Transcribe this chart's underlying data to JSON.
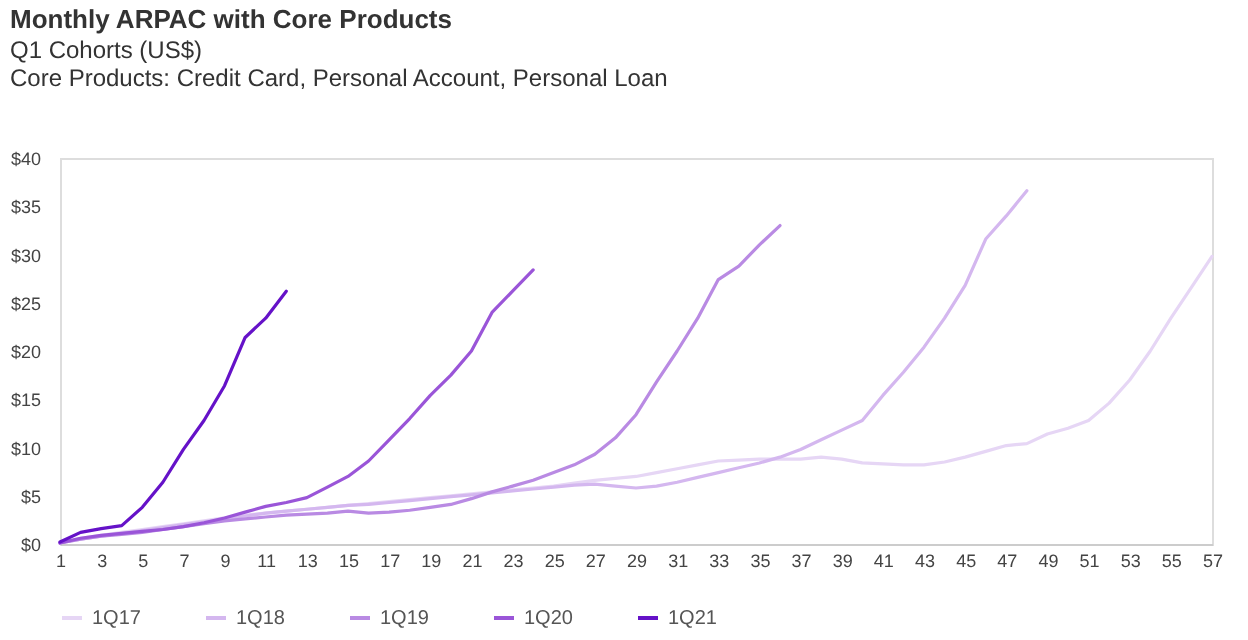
{
  "chart_data": {
    "type": "line",
    "title": "Monthly ARPAC with Core Products",
    "subtitle": "Q1 Cohorts (US$)\nCore Products: Credit Card, Personal Account, Personal Loan",
    "x": [
      1,
      2,
      3,
      4,
      5,
      6,
      7,
      8,
      9,
      10,
      11,
      12,
      13,
      14,
      15,
      16,
      17,
      18,
      19,
      20,
      21,
      22,
      23,
      24,
      25,
      26,
      27,
      28,
      29,
      30,
      31,
      32,
      33,
      34,
      35,
      36,
      37,
      38,
      39,
      40,
      41,
      42,
      43,
      44,
      45,
      46,
      47,
      48,
      49,
      50,
      51,
      52,
      53,
      54,
      55,
      56,
      57
    ],
    "xlim": [
      1,
      57
    ],
    "xticks": [
      1,
      3,
      5,
      7,
      9,
      11,
      13,
      15,
      17,
      19,
      21,
      23,
      25,
      27,
      29,
      31,
      33,
      35,
      37,
      39,
      41,
      43,
      45,
      47,
      49,
      51,
      53,
      55,
      57
    ],
    "ylim": [
      0,
      40
    ],
    "yticks": [
      {
        "value": 0,
        "label": "$0"
      },
      {
        "value": 5,
        "label": "$5"
      },
      {
        "value": 10,
        "label": "$10"
      },
      {
        "value": 15,
        "label": "$15"
      },
      {
        "value": 20,
        "label": "$20"
      },
      {
        "value": 25,
        "label": "$25"
      },
      {
        "value": 30,
        "label": "$30"
      },
      {
        "value": 35,
        "label": "$35"
      },
      {
        "value": 40,
        "label": "$40"
      }
    ],
    "grid": false,
    "legend": "bottom",
    "marker": "none",
    "line_style": "solid",
    "series": [
      {
        "name": "1Q17",
        "color": "#e6d6f5",
        "values": [
          0.2,
          0.6,
          0.9,
          1.2,
          1.5,
          1.8,
          2.1,
          2.4,
          2.7,
          3.0,
          3.2,
          3.4,
          3.6,
          3.8,
          4.0,
          4.2,
          4.4,
          4.6,
          4.8,
          5.0,
          5.2,
          5.4,
          5.6,
          5.8,
          6.0,
          6.3,
          6.6,
          6.8,
          7.0,
          7.4,
          7.8,
          8.2,
          8.6,
          8.7,
          8.8,
          8.8,
          8.8,
          9.0,
          8.8,
          8.4,
          8.3,
          8.2,
          8.2,
          8.5,
          9.0,
          9.6,
          10.2,
          10.4,
          11.4,
          12.0,
          12.8,
          14.6,
          17.0,
          20.0,
          23.4,
          26.6,
          29.8
        ]
      },
      {
        "name": "1Q18",
        "color": "#d4b7ef",
        "values": [
          0.1,
          0.5,
          0.8,
          1.1,
          1.4,
          1.7,
          2.0,
          2.3,
          2.6,
          2.9,
          3.2,
          3.4,
          3.6,
          3.8,
          4.0,
          4.1,
          4.3,
          4.5,
          4.7,
          4.9,
          5.1,
          5.3,
          5.5,
          5.7,
          5.9,
          6.1,
          6.2,
          6.0,
          5.8,
          6.0,
          6.4,
          6.9,
          7.4,
          7.9,
          8.4,
          9.0,
          9.8,
          10.8,
          11.8,
          12.8,
          15.4,
          17.8,
          20.4,
          23.4,
          26.8,
          31.6,
          34.0,
          36.6,
          null,
          null,
          null,
          null,
          null,
          null,
          null,
          null,
          null
        ]
      },
      {
        "name": "1Q19",
        "color": "#b98ae3",
        "values": [
          0.1,
          0.5,
          0.8,
          1.0,
          1.2,
          1.5,
          1.8,
          2.1,
          2.4,
          2.6,
          2.8,
          3.0,
          3.1,
          3.2,
          3.4,
          3.2,
          3.3,
          3.5,
          3.8,
          4.1,
          4.7,
          5.4,
          6.0,
          6.6,
          7.4,
          8.2,
          9.3,
          11.0,
          13.4,
          16.8,
          20.0,
          23.4,
          27.4,
          28.8,
          31.0,
          33.0,
          null,
          null,
          null,
          null,
          null,
          null,
          null,
          null,
          null,
          null,
          null,
          null,
          null,
          null,
          null,
          null,
          null,
          null,
          null,
          null,
          null
        ]
      },
      {
        "name": "1Q20",
        "color": "#9a55d8",
        "values": [
          0.1,
          0.6,
          0.9,
          1.1,
          1.3,
          1.5,
          1.8,
          2.2,
          2.7,
          3.3,
          3.9,
          4.3,
          4.8,
          5.9,
          7.0,
          8.6,
          10.8,
          13.0,
          15.4,
          17.5,
          20.0,
          24.0,
          26.2,
          28.4,
          null,
          null,
          null,
          null,
          null,
          null,
          null,
          null,
          null,
          null,
          null,
          null,
          null,
          null,
          null,
          null,
          null,
          null,
          null,
          null,
          null,
          null,
          null,
          null,
          null,
          null,
          null,
          null,
          null,
          null,
          null,
          null,
          null
        ]
      },
      {
        "name": "1Q21",
        "color": "#6512c8",
        "values": [
          0.2,
          1.2,
          1.6,
          1.9,
          3.8,
          6.4,
          9.8,
          12.8,
          16.4,
          21.4,
          23.4,
          26.2,
          null,
          null,
          null,
          null,
          null,
          null,
          null,
          null,
          null,
          null,
          null,
          null,
          null,
          null,
          null,
          null,
          null,
          null,
          null,
          null,
          null,
          null,
          null,
          null,
          null,
          null,
          null,
          null,
          null,
          null,
          null,
          null,
          null,
          null,
          null,
          null,
          null,
          null,
          null,
          null,
          null,
          null,
          null,
          null,
          null
        ]
      }
    ]
  }
}
